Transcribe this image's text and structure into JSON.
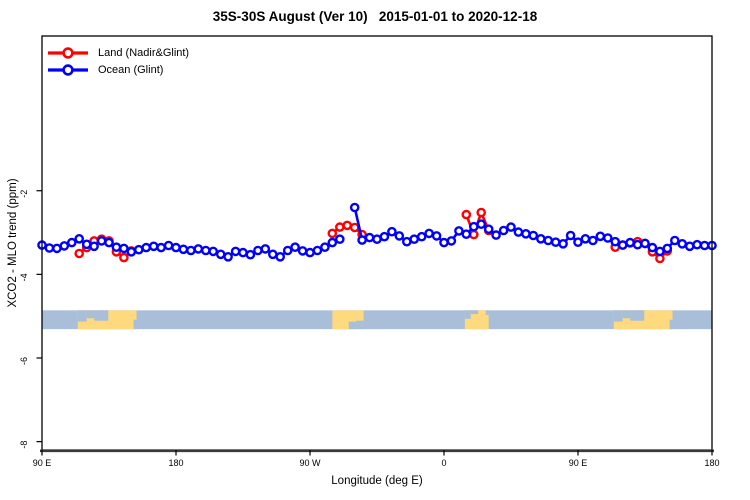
{
  "title": "35S-30S August (Ver 10)   2015-01-01 to 2020-12-18",
  "legend": {
    "items": [
      {
        "label": "Land (Nadir&Glint)",
        "color": "#ff0000"
      },
      {
        "label": "Ocean (Glint)",
        "color": "#0000ff"
      }
    ]
  },
  "chart_data": {
    "type": "line",
    "title": "35S-30S August (Ver 10)   2015-01-01 to 2020-12-18",
    "xlabel": "Longitude (deg E)",
    "ylabel": "XCO2 - MLO trend (ppm)",
    "xlim": [
      90,
      540
    ],
    "ylim": [
      -8.2,
      1.7
    ],
    "grid": "off",
    "legend_position": "top-left",
    "x_ticks": [
      {
        "v": 90,
        "label": "90 E"
      },
      {
        "v": 180,
        "label": "180"
      },
      {
        "v": 270,
        "label": "90 W"
      },
      {
        "v": 360,
        "label": "0"
      },
      {
        "v": 450,
        "label": "90 E"
      },
      {
        "v": 540,
        "label": "180"
      }
    ],
    "y_ticks": [
      {
        "v": -2,
        "label": "-2"
      },
      {
        "v": -4,
        "label": "-4"
      },
      {
        "v": -6,
        "label": "-6"
      },
      {
        "v": -8,
        "label": "-8"
      }
    ],
    "series": [
      {
        "id": "land",
        "name": "Land (Nadir&Glint)",
        "color": "#ff0000",
        "segments": [
          [
            [
              115,
              -3.5
            ],
            [
              120,
              -3.36
            ],
            [
              125,
              -3.2
            ],
            [
              130,
              -3.16
            ],
            [
              135,
              -3.2
            ],
            [
              140,
              -3.46
            ],
            [
              145,
              -3.6
            ],
            [
              150,
              -3.44
            ]
          ],
          [
            [
              285,
              -3.02
            ],
            [
              290,
              -2.87
            ],
            [
              295,
              -2.83
            ],
            [
              300,
              -2.88
            ],
            [
              305,
              -3.05
            ]
          ],
          [
            [
              375,
              -2.57
            ],
            [
              380,
              -3.05
            ],
            [
              385,
              -2.52
            ],
            [
              390,
              -2.95
            ]
          ],
          [
            [
              475,
              -3.35
            ],
            [
              480,
              -3.3
            ],
            [
              485,
              -3.25
            ],
            [
              490,
              -3.22
            ],
            [
              495,
              -3.26
            ],
            [
              500,
              -3.46
            ],
            [
              505,
              -3.62
            ],
            [
              510,
              -3.44
            ]
          ]
        ]
      },
      {
        "id": "ocean",
        "name": "Ocean (Glint)",
        "color": "#0000ff",
        "segments": [
          [
            [
              90,
              -3.3
            ],
            [
              95,
              -3.37
            ],
            [
              100,
              -3.38
            ],
            [
              105,
              -3.32
            ],
            [
              110,
              -3.24
            ],
            [
              115,
              -3.15
            ],
            [
              120,
              -3.28
            ],
            [
              125,
              -3.33
            ],
            [
              130,
              -3.2
            ],
            [
              135,
              -3.24
            ],
            [
              140,
              -3.35
            ],
            [
              145,
              -3.38
            ],
            [
              150,
              -3.46
            ],
            [
              155,
              -3.41
            ],
            [
              160,
              -3.36
            ],
            [
              165,
              -3.33
            ],
            [
              170,
              -3.36
            ],
            [
              175,
              -3.31
            ],
            [
              180,
              -3.36
            ],
            [
              185,
              -3.4
            ],
            [
              190,
              -3.43
            ],
            [
              195,
              -3.39
            ],
            [
              200,
              -3.43
            ],
            [
              205,
              -3.45
            ],
            [
              210,
              -3.52
            ],
            [
              215,
              -3.58
            ],
            [
              220,
              -3.45
            ],
            [
              225,
              -3.48
            ],
            [
              230,
              -3.53
            ],
            [
              235,
              -3.43
            ],
            [
              240,
              -3.39
            ],
            [
              245,
              -3.52
            ],
            [
              250,
              -3.58
            ],
            [
              255,
              -3.43
            ],
            [
              260,
              -3.35
            ],
            [
              265,
              -3.44
            ],
            [
              270,
              -3.48
            ],
            [
              275,
              -3.43
            ],
            [
              280,
              -3.35
            ],
            [
              285,
              -3.24
            ],
            [
              290,
              -3.16
            ]
          ],
          [
            [
              300,
              -2.4
            ],
            [
              305,
              -3.18
            ],
            [
              310,
              -3.12
            ],
            [
              315,
              -3.16
            ],
            [
              320,
              -3.1
            ],
            [
              325,
              -2.98
            ],
            [
              330,
              -3.08
            ],
            [
              335,
              -3.22
            ],
            [
              340,
              -3.16
            ],
            [
              345,
              -3.1
            ],
            [
              350,
              -3.02
            ],
            [
              355,
              -3.08
            ],
            [
              360,
              -3.24
            ],
            [
              365,
              -3.2
            ],
            [
              370,
              -2.96
            ],
            [
              375,
              -3.04
            ],
            [
              380,
              -2.86
            ],
            [
              385,
              -2.8
            ],
            [
              390,
              -2.92
            ],
            [
              395,
              -3.06
            ],
            [
              400,
              -2.95
            ],
            [
              405,
              -2.87
            ],
            [
              410,
              -2.99
            ],
            [
              415,
              -3.03
            ],
            [
              420,
              -3.07
            ],
            [
              425,
              -3.15
            ],
            [
              430,
              -3.19
            ],
            [
              435,
              -3.23
            ],
            [
              440,
              -3.27
            ],
            [
              445,
              -3.07
            ],
            [
              450,
              -3.23
            ],
            [
              455,
              -3.15
            ],
            [
              460,
              -3.19
            ],
            [
              465,
              -3.09
            ],
            [
              470,
              -3.13
            ],
            [
              475,
              -3.22
            ],
            [
              480,
              -3.3
            ],
            [
              485,
              -3.24
            ],
            [
              490,
              -3.29
            ],
            [
              495,
              -3.26
            ],
            [
              500,
              -3.36
            ],
            [
              505,
              -3.45
            ],
            [
              510,
              -3.38
            ],
            [
              515,
              -3.19
            ],
            [
              520,
              -3.27
            ],
            [
              525,
              -3.33
            ],
            [
              530,
              -3.29
            ],
            [
              535,
              -3.31
            ],
            [
              540,
              -3.31
            ]
          ]
        ]
      }
    ],
    "strip": {
      "description": "land/ocean map band for latitude 35S-30S",
      "value_top": -4.86,
      "value_bottom": -5.31,
      "ocean_color": "#a9bed9",
      "land_color": "#ffd97e",
      "land_rects": [
        [
          114,
          153.5
        ],
        [
          285,
          301
        ],
        [
          301,
          306
        ],
        [
          374,
          390
        ],
        [
          474,
          513.5
        ]
      ],
      "ocean_patches": [
        [
          114,
          120,
          0,
          0.6
        ],
        [
          120,
          125,
          0,
          0.42
        ],
        [
          125,
          134.5,
          0,
          0.55
        ],
        [
          151.5,
          153.5,
          0.5,
          1
        ],
        [
          296,
          301,
          0.6,
          1
        ],
        [
          301,
          306,
          0.55,
          1
        ],
        [
          374,
          378,
          0,
          0.45
        ],
        [
          378,
          383,
          0,
          0.2
        ],
        [
          388,
          390,
          0,
          0.25
        ],
        [
          474,
          480,
          0,
          0.6
        ],
        [
          480,
          485,
          0,
          0.42
        ],
        [
          485,
          494.5,
          0,
          0.55
        ],
        [
          511.5,
          513.5,
          0.5,
          1
        ]
      ]
    },
    "style": {
      "frame_color": "#000000",
      "axis_line_color": "#3a3a3a",
      "marker_radius": 3.6,
      "marker_stroke": 2.4,
      "line_width": 2.6
    }
  }
}
